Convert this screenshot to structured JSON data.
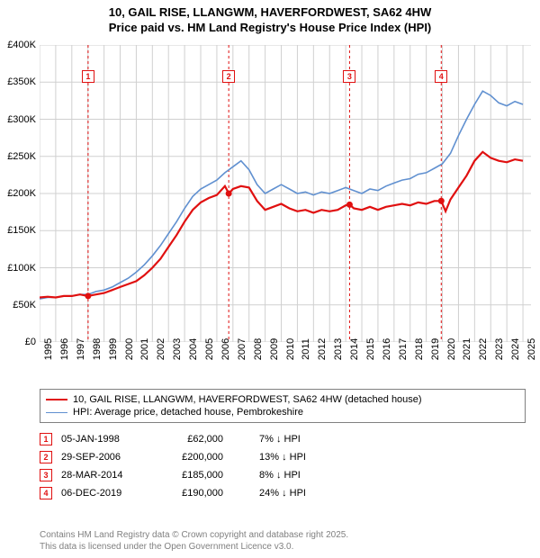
{
  "title_line1": "10, GAIL RISE, LLANGWM, HAVERFORDWEST, SA62 4HW",
  "title_line2": "Price paid vs. HM Land Registry's House Price Index (HPI)",
  "chart": {
    "type": "line",
    "background_color": "#ffffff",
    "grid_color": "#d0d0d0",
    "x_range": [
      1995,
      2025.5
    ],
    "y_range": [
      0,
      400000
    ],
    "x_ticks": [
      1995,
      1996,
      1997,
      1998,
      1999,
      2000,
      2001,
      2002,
      2003,
      2004,
      2005,
      2006,
      2007,
      2008,
      2009,
      2010,
      2011,
      2012,
      2013,
      2014,
      2015,
      2016,
      2017,
      2018,
      2019,
      2020,
      2021,
      2022,
      2023,
      2024,
      2025
    ],
    "y_ticks": [
      0,
      50000,
      100000,
      150000,
      200000,
      250000,
      300000,
      350000,
      400000
    ],
    "y_tick_labels": [
      "£0",
      "£50K",
      "£100K",
      "£150K",
      "£200K",
      "£250K",
      "£300K",
      "£350K",
      "£400K"
    ],
    "series": [
      {
        "name": "property",
        "label": "10, GAIL RISE, LLANGWM, HAVERFORDWEST, SA62 4HW (detached house)",
        "color": "#e01010",
        "line_width": 2.2,
        "data": [
          [
            1995,
            60000
          ],
          [
            1995.5,
            61000
          ],
          [
            1996,
            60000
          ],
          [
            1996.5,
            62000
          ],
          [
            1997,
            62000
          ],
          [
            1997.5,
            64000
          ],
          [
            1998,
            62000
          ],
          [
            1998.5,
            64000
          ],
          [
            1999,
            66000
          ],
          [
            1999.5,
            70000
          ],
          [
            2000,
            74000
          ],
          [
            2000.5,
            78000
          ],
          [
            2001,
            82000
          ],
          [
            2001.5,
            90000
          ],
          [
            2002,
            100000
          ],
          [
            2002.5,
            112000
          ],
          [
            2003,
            128000
          ],
          [
            2003.5,
            144000
          ],
          [
            2004,
            162000
          ],
          [
            2004.5,
            178000
          ],
          [
            2005,
            188000
          ],
          [
            2005.5,
            194000
          ],
          [
            2006,
            198000
          ],
          [
            2006.5,
            210000
          ],
          [
            2006.75,
            200000
          ],
          [
            2007,
            206000
          ],
          [
            2007.5,
            210000
          ],
          [
            2008,
            208000
          ],
          [
            2008.5,
            190000
          ],
          [
            2009,
            178000
          ],
          [
            2009.5,
            182000
          ],
          [
            2010,
            186000
          ],
          [
            2010.5,
            180000
          ],
          [
            2011,
            176000
          ],
          [
            2011.5,
            178000
          ],
          [
            2012,
            174000
          ],
          [
            2012.5,
            178000
          ],
          [
            2013,
            176000
          ],
          [
            2013.5,
            178000
          ],
          [
            2014,
            184000
          ],
          [
            2014.25,
            185000
          ],
          [
            2014.5,
            180000
          ],
          [
            2015,
            178000
          ],
          [
            2015.5,
            182000
          ],
          [
            2016,
            178000
          ],
          [
            2016.5,
            182000
          ],
          [
            2017,
            184000
          ],
          [
            2017.5,
            186000
          ],
          [
            2018,
            184000
          ],
          [
            2018.5,
            188000
          ],
          [
            2019,
            186000
          ],
          [
            2019.5,
            190000
          ],
          [
            2019.93,
            190000
          ],
          [
            2020.2,
            176000
          ],
          [
            2020.5,
            192000
          ],
          [
            2021,
            208000
          ],
          [
            2021.5,
            224000
          ],
          [
            2022,
            244000
          ],
          [
            2022.5,
            256000
          ],
          [
            2023,
            248000
          ],
          [
            2023.5,
            244000
          ],
          [
            2024,
            242000
          ],
          [
            2024.5,
            246000
          ],
          [
            2025,
            244000
          ]
        ]
      },
      {
        "name": "hpi",
        "label": "HPI: Average price, detached house, Pembrokeshire",
        "color": "#6090d0",
        "line_width": 1.6,
        "data": [
          [
            1995,
            58000
          ],
          [
            1995.5,
            60000
          ],
          [
            1996,
            60000
          ],
          [
            1996.5,
            62000
          ],
          [
            1997,
            62000
          ],
          [
            1997.5,
            64000
          ],
          [
            1998,
            64000
          ],
          [
            1998.5,
            68000
          ],
          [
            1999,
            70000
          ],
          [
            1999.5,
            74000
          ],
          [
            2000,
            80000
          ],
          [
            2000.5,
            86000
          ],
          [
            2001,
            94000
          ],
          [
            2001.5,
            104000
          ],
          [
            2002,
            116000
          ],
          [
            2002.5,
            130000
          ],
          [
            2003,
            146000
          ],
          [
            2003.5,
            162000
          ],
          [
            2004,
            180000
          ],
          [
            2004.5,
            196000
          ],
          [
            2005,
            206000
          ],
          [
            2005.5,
            212000
          ],
          [
            2006,
            218000
          ],
          [
            2006.5,
            228000
          ],
          [
            2007,
            236000
          ],
          [
            2007.5,
            244000
          ],
          [
            2008,
            232000
          ],
          [
            2008.5,
            212000
          ],
          [
            2009,
            200000
          ],
          [
            2009.5,
            206000
          ],
          [
            2010,
            212000
          ],
          [
            2010.5,
            206000
          ],
          [
            2011,
            200000
          ],
          [
            2011.5,
            202000
          ],
          [
            2012,
            198000
          ],
          [
            2012.5,
            202000
          ],
          [
            2013,
            200000
          ],
          [
            2013.5,
            204000
          ],
          [
            2014,
            208000
          ],
          [
            2014.5,
            204000
          ],
          [
            2015,
            200000
          ],
          [
            2015.5,
            206000
          ],
          [
            2016,
            204000
          ],
          [
            2016.5,
            210000
          ],
          [
            2017,
            214000
          ],
          [
            2017.5,
            218000
          ],
          [
            2018,
            220000
          ],
          [
            2018.5,
            226000
          ],
          [
            2019,
            228000
          ],
          [
            2019.5,
            234000
          ],
          [
            2020,
            240000
          ],
          [
            2020.5,
            254000
          ],
          [
            2021,
            278000
          ],
          [
            2021.5,
            300000
          ],
          [
            2022,
            320000
          ],
          [
            2022.5,
            338000
          ],
          [
            2023,
            332000
          ],
          [
            2023.5,
            322000
          ],
          [
            2024,
            318000
          ],
          [
            2024.5,
            324000
          ],
          [
            2025,
            320000
          ]
        ]
      }
    ],
    "sale_markers": [
      {
        "n": "1",
        "x": 1998.01,
        "color": "#e01010"
      },
      {
        "n": "2",
        "x": 2006.74,
        "color": "#e01010"
      },
      {
        "n": "3",
        "x": 2014.24,
        "color": "#e01010"
      },
      {
        "n": "4",
        "x": 2019.93,
        "color": "#e01010"
      }
    ],
    "sale_points": [
      {
        "x": 1998.01,
        "y": 62000
      },
      {
        "x": 2006.74,
        "y": 200000
      },
      {
        "x": 2014.24,
        "y": 185000
      },
      {
        "x": 2019.93,
        "y": 190000
      }
    ],
    "marker_box_top_y": 358000
  },
  "sales": [
    {
      "n": "1",
      "date": "05-JAN-1998",
      "price": "£62,000",
      "pct": "7% ↓ HPI",
      "color": "#e01010"
    },
    {
      "n": "2",
      "date": "29-SEP-2006",
      "price": "£200,000",
      "pct": "13% ↓ HPI",
      "color": "#e01010"
    },
    {
      "n": "3",
      "date": "28-MAR-2014",
      "price": "£185,000",
      "pct": "8% ↓ HPI",
      "color": "#e01010"
    },
    {
      "n": "4",
      "date": "06-DEC-2019",
      "price": "£190,000",
      "pct": "24% ↓ HPI",
      "color": "#e01010"
    }
  ],
  "attribution_line1": "Contains HM Land Registry data © Crown copyright and database right 2025.",
  "attribution_line2": "This data is licensed under the Open Government Licence v3.0."
}
